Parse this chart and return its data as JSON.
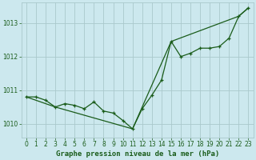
{
  "title": "Graphe pression niveau de la mer (hPa)",
  "bg_color": "#cce8ee",
  "grid_color": "#aac8cc",
  "line_color": "#1a5c1a",
  "xlim": [
    -0.5,
    23.5
  ],
  "ylim": [
    1009.6,
    1013.6
  ],
  "yticks": [
    1010,
    1011,
    1012,
    1013
  ],
  "xticks": [
    0,
    1,
    2,
    3,
    4,
    5,
    6,
    7,
    8,
    9,
    10,
    11,
    12,
    13,
    14,
    15,
    16,
    17,
    18,
    19,
    20,
    21,
    22,
    23
  ],
  "line1_x": [
    0,
    1,
    2,
    3,
    4,
    5,
    6,
    7,
    8,
    9,
    10,
    11,
    12,
    13,
    14,
    15,
    16,
    17,
    18,
    19,
    20,
    21,
    22,
    23
  ],
  "line1_y": [
    1010.8,
    1010.8,
    1010.7,
    1010.5,
    1010.6,
    1010.55,
    1010.45,
    1010.65,
    1010.38,
    1010.32,
    1010.1,
    1009.85,
    1010.45,
    1010.85,
    1011.3,
    1012.45,
    1012.0,
    1012.1,
    1012.25,
    1012.25,
    1012.3,
    1012.55,
    1013.2,
    1013.45
  ],
  "line2_x": [
    0,
    3,
    11,
    15,
    22,
    23
  ],
  "line2_y": [
    1010.8,
    1010.5,
    1009.85,
    1012.45,
    1013.2,
    1013.45
  ],
  "xlabel_fontsize": 6.5,
  "tick_fontsize": 5.5
}
